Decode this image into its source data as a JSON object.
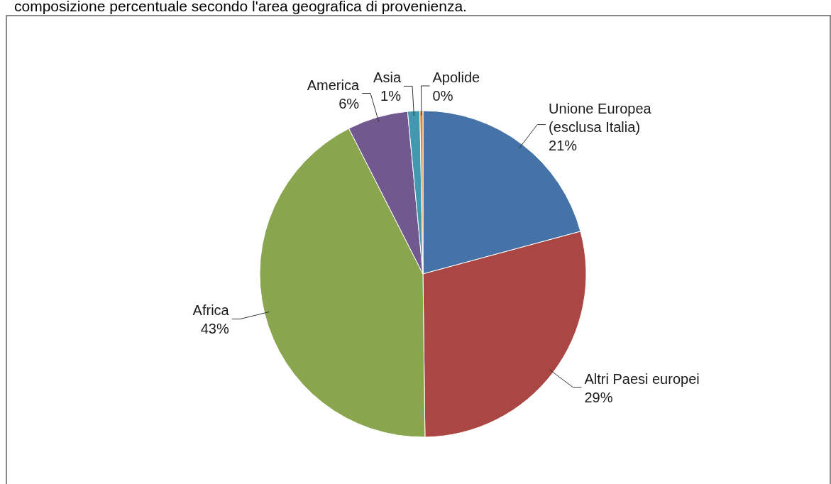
{
  "chart_data": {
    "type": "pie",
    "title": "composizione percentuale secondo l'area geografica di provenienza.",
    "categories": [
      "Unione Europea\n(esclusa Italia)",
      "Altri Paesi europei",
      "Africa",
      "America",
      "Asia",
      "Apolide"
    ],
    "values": [
      20.8,
      29.0,
      42.7,
      6.0,
      1.2,
      0.3
    ],
    "value_labels": [
      "21%",
      "29%",
      "43%",
      "6%",
      "1%",
      "0%"
    ],
    "colors": [
      "#4572a7",
      "#aa4643",
      "#89a54e",
      "#71588f",
      "#4198af",
      "#db843d"
    ]
  }
}
